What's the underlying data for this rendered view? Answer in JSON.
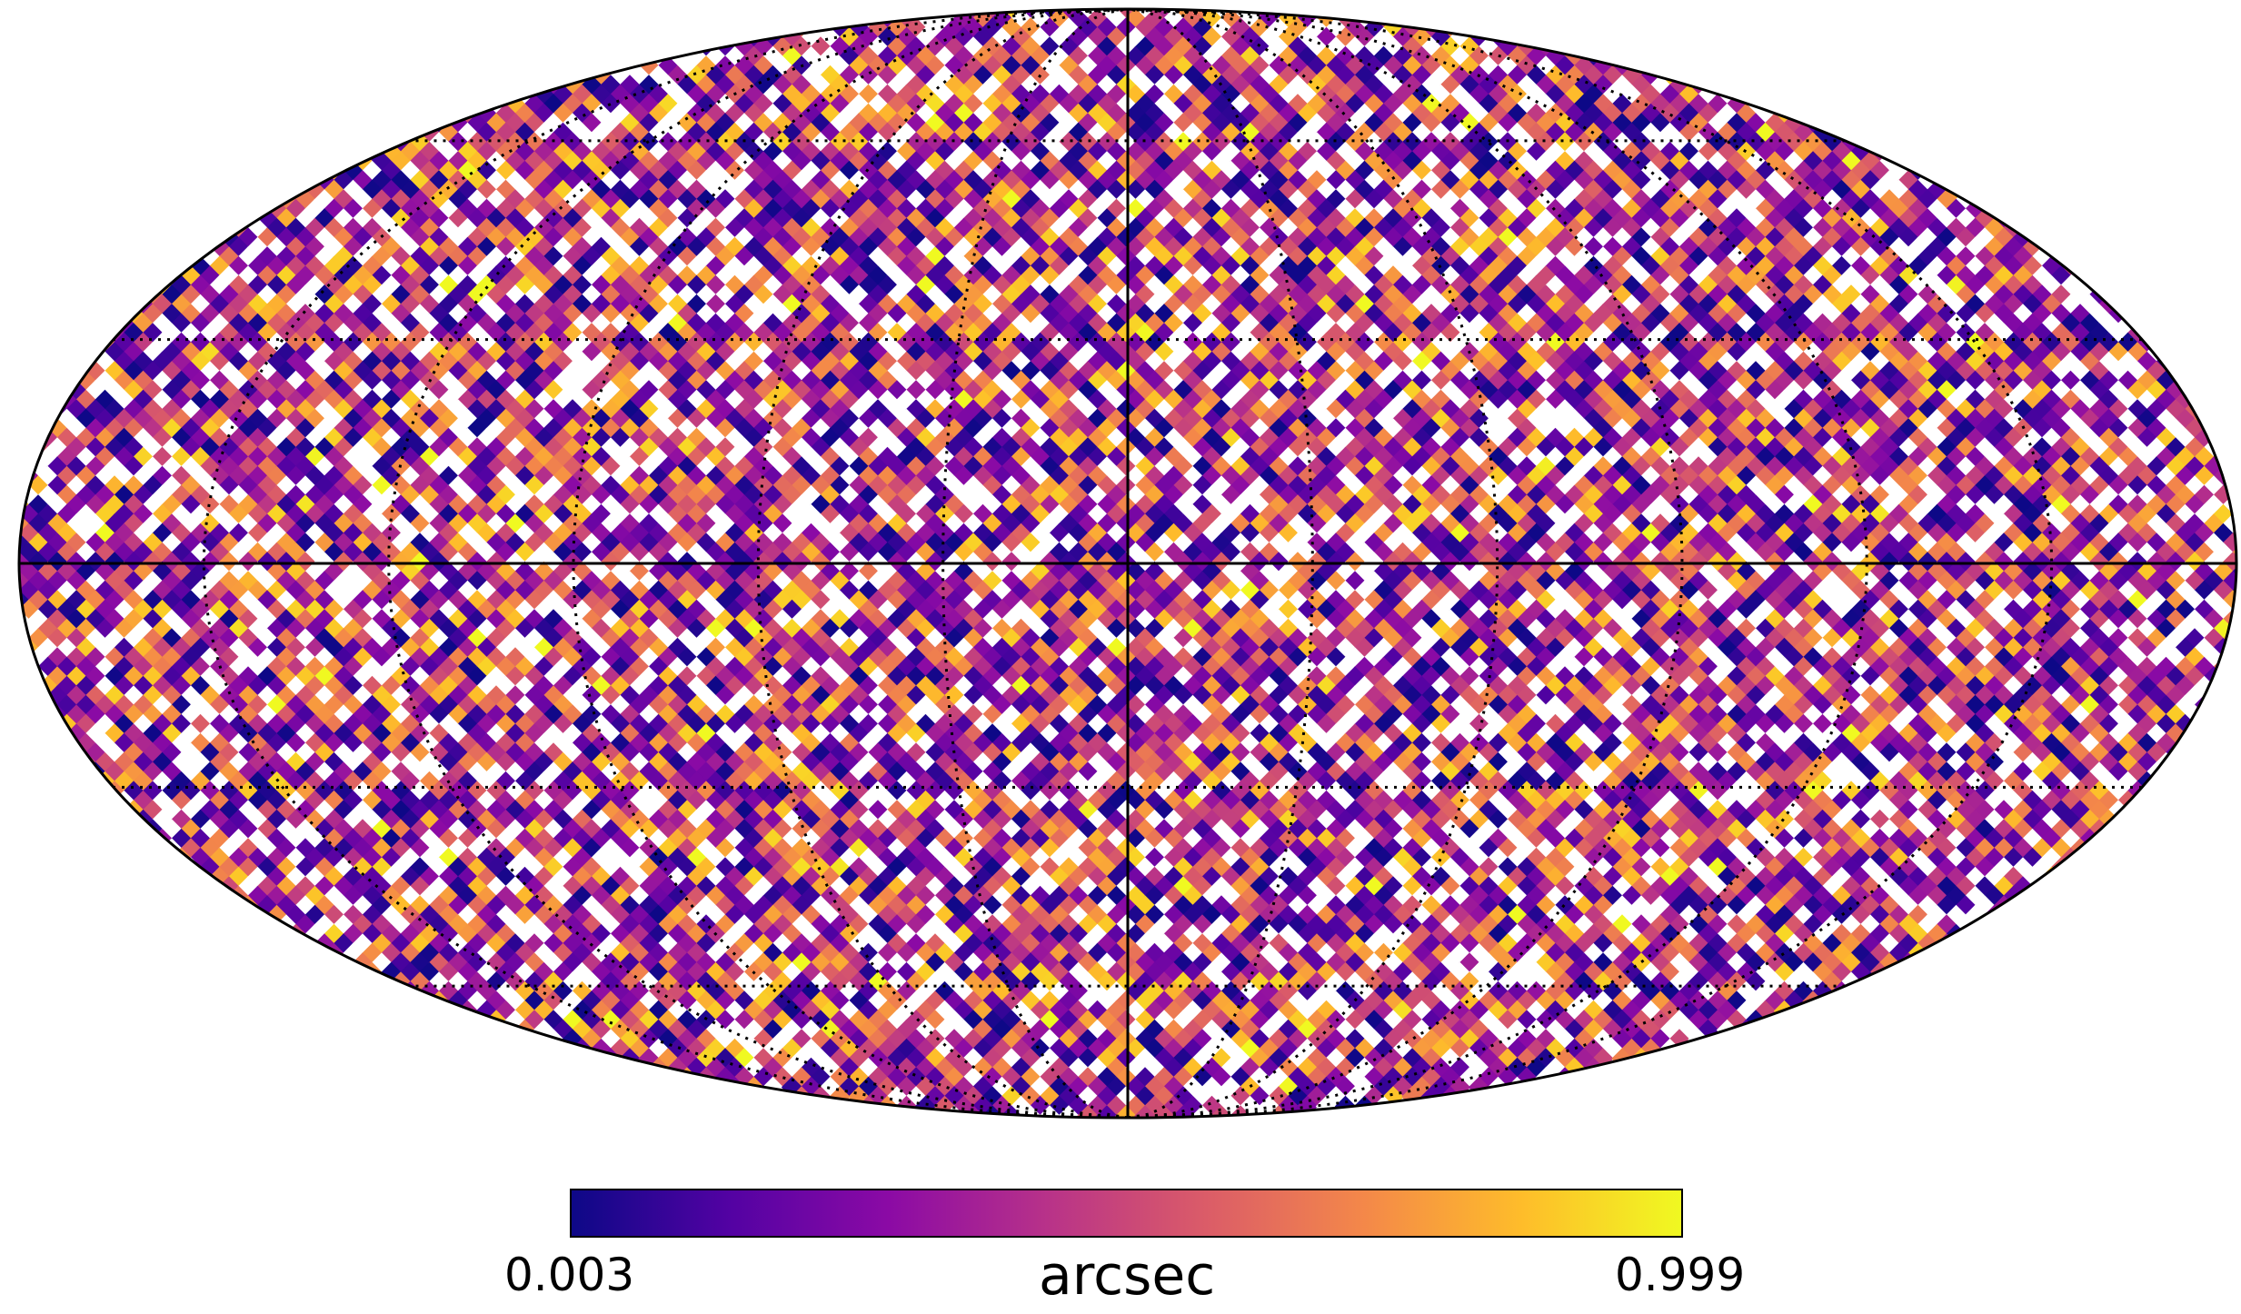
{
  "chart_data": {
    "type": "heatmap",
    "projection": "mollweide",
    "graticule": true,
    "colormap": "plasma",
    "colormap_stops": [
      "#0d0887",
      "#5302a3",
      "#8b0aa5",
      "#b83289",
      "#db5c68",
      "#f48849",
      "#febd2a",
      "#f0f921"
    ],
    "missing_color": "#ffffff",
    "missing_fraction": 0.22,
    "value_range": [
      0.003,
      0.999
    ],
    "colorbar": {
      "position": "bottom",
      "min_label": "0.003",
      "max_label": "0.999",
      "unit": "arcsec"
    },
    "values_note_free": true
  }
}
